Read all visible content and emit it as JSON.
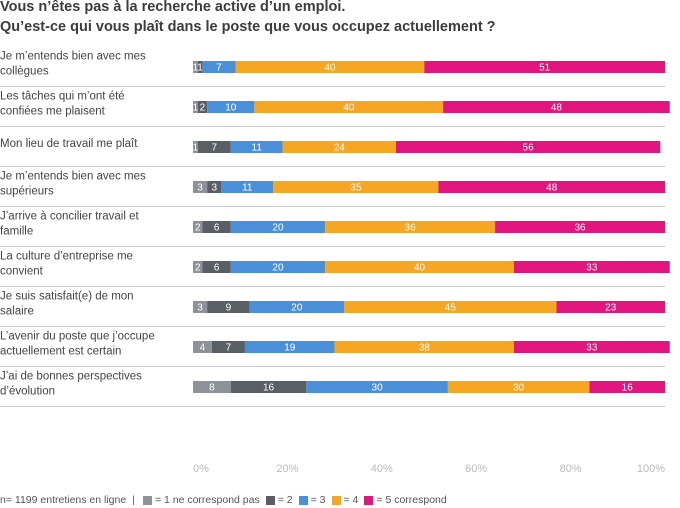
{
  "title_lines": [
    "Vous n’êtes pas à la recherche active d’un emploi.",
    "Qu’est-ce qui vous plaît dans le poste que vous occupez actuellement ?"
  ],
  "colors": {
    "1": "#8c9297",
    "2": "#5a5f63",
    "3": "#4a90d9",
    "4": "#f5a623",
    "5": "#e0157e",
    "row_line": "#cccccc",
    "axis_text": "#bbbbbb"
  },
  "footer": {
    "note": "n= 1199 entretiens en ligne",
    "separator": "|",
    "legend": [
      {
        "key": "1",
        "label": "= 1  ne correspond pas"
      },
      {
        "key": "2",
        "label": "= 2"
      },
      {
        "key": "3",
        "label": "= 3"
      },
      {
        "key": "4",
        "label": "= 4"
      },
      {
        "key": "5",
        "label": "= 5 correspond"
      }
    ]
  },
  "chart_data": {
    "type": "bar",
    "orientation": "horizontal",
    "stacked": true,
    "xlim": [
      0,
      100
    ],
    "x_ticks": [
      "0%",
      "20%",
      "40%",
      "60%",
      "80%",
      "100%"
    ],
    "categories": [
      [
        "Je m’entends bien avec mes",
        "collègues"
      ],
      [
        "Les tâches qui m’ont été",
        "confiées me plaisent"
      ],
      [
        "Mon lieu de travail me plaît"
      ],
      [
        "Je m’entends bien avec mes",
        "supérieurs"
      ],
      [
        "J’arrive à concilier travail et",
        "famille"
      ],
      [
        "La culture d’entreprise me",
        "convient"
      ],
      [
        "Je suis satisfait(e) de mon",
        "salaire"
      ],
      [
        "L’avenir du poste que j’occupe",
        "actuellement est certain"
      ],
      [
        "J’ai de bonnes perspectives",
        "d’évolution"
      ]
    ],
    "series": [
      {
        "name": "1",
        "values": [
          1,
          1,
          1,
          3,
          2,
          2,
          3,
          4,
          8
        ]
      },
      {
        "name": "2",
        "values": [
          1,
          2,
          7,
          3,
          6,
          6,
          9,
          7,
          16
        ]
      },
      {
        "name": "3",
        "values": [
          7,
          10,
          11,
          11,
          20,
          20,
          20,
          19,
          30
        ]
      },
      {
        "name": "4",
        "values": [
          40,
          40,
          24,
          35,
          36,
          40,
          45,
          38,
          30
        ]
      },
      {
        "name": "5",
        "values": [
          51,
          48,
          56,
          48,
          36,
          33,
          23,
          33,
          16
        ]
      }
    ]
  }
}
